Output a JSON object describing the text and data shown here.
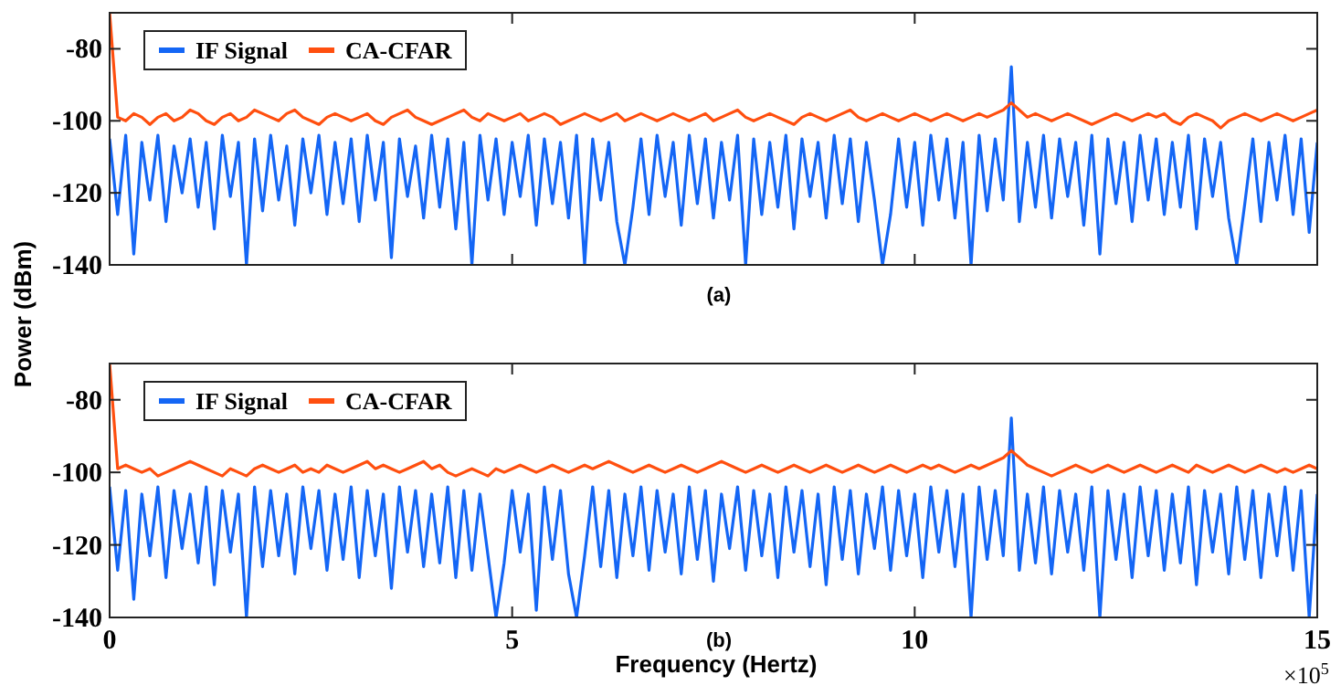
{
  "chart_data": [
    {
      "type": "line",
      "ylabel": "Power (dBm)",
      "annotations": [
        "(a)"
      ],
      "xlim": [
        0,
        15
      ],
      "xticks": [
        0,
        5,
        10,
        15
      ],
      "ylim": [
        -140,
        -70
      ],
      "yticks": [
        -80,
        -100,
        -120,
        -140
      ],
      "tick_labels": "y",
      "grid": false,
      "legend": "top left",
      "line_style": "solid",
      "marker": "none",
      "x": [
        0,
        0.1,
        0.2,
        0.3,
        0.4,
        0.5,
        0.6,
        0.7,
        0.8,
        0.9,
        1,
        1.1,
        1.2,
        1.3,
        1.4,
        1.5,
        1.6,
        1.7,
        1.8,
        1.9,
        2,
        2.1,
        2.2,
        2.3,
        2.4,
        2.5,
        2.6,
        2.7,
        2.8,
        2.9,
        3,
        3.1,
        3.2,
        3.3,
        3.4,
        3.5,
        3.6,
        3.7,
        3.8,
        3.9,
        4,
        4.1,
        4.2,
        4.3,
        4.4,
        4.5,
        4.6,
        4.7,
        4.8,
        4.9,
        5,
        5.1,
        5.2,
        5.3,
        5.4,
        5.5,
        5.6,
        5.7,
        5.8,
        5.9,
        6,
        6.1,
        6.2,
        6.3,
        6.4,
        6.5,
        6.6,
        6.7,
        6.8,
        6.9,
        7,
        7.1,
        7.2,
        7.3,
        7.4,
        7.5,
        7.6,
        7.7,
        7.8,
        7.9,
        8,
        8.1,
        8.2,
        8.3,
        8.4,
        8.5,
        8.6,
        8.7,
        8.8,
        8.9,
        9,
        9.1,
        9.2,
        9.3,
        9.4,
        9.5,
        9.6,
        9.7,
        9.8,
        9.9,
        10,
        10.1,
        10.2,
        10.3,
        10.4,
        10.5,
        10.6,
        10.7,
        10.8,
        10.9,
        11,
        11.1,
        11.2,
        11.3,
        11.4,
        11.5,
        11.6,
        11.7,
        11.8,
        11.9,
        12,
        12.1,
        12.2,
        12.3,
        12.4,
        12.5,
        12.6,
        12.7,
        12.8,
        12.9,
        13,
        13.1,
        13.2,
        13.3,
        13.4,
        13.5,
        13.6,
        13.7,
        13.8,
        13.9,
        14,
        14.1,
        14.2,
        14.3,
        14.4,
        14.5,
        14.6,
        14.7,
        14.8,
        14.9,
        15
      ],
      "series": [
        {
          "name": "IF Signal",
          "color": "#1466f5",
          "values": [
            -105,
            -126,
            -104,
            -137,
            -106,
            -122,
            -104,
            -128,
            -107,
            -120,
            -105,
            -124,
            -106,
            -130,
            -104,
            -121,
            -106,
            -140,
            -105,
            -125,
            -104,
            -122,
            -107,
            -129,
            -105,
            -120,
            -104,
            -126,
            -106,
            -123,
            -105,
            -128,
            -104,
            -122,
            -106,
            -138,
            -105,
            -121,
            -107,
            -127,
            -104,
            -124,
            -105,
            -130,
            -106,
            -140,
            -104,
            -122,
            -105,
            -126,
            -106,
            -121,
            -104,
            -129,
            -105,
            -123,
            -106,
            -127,
            -104,
            -140,
            -105,
            -122,
            -106,
            -128,
            -140,
            -124,
            -105,
            -126,
            -104,
            -121,
            -106,
            -129,
            -104,
            -123,
            -105,
            -127,
            -106,
            -122,
            -104,
            -140,
            -105,
            -126,
            -106,
            -124,
            -104,
            -130,
            -105,
            -121,
            -106,
            -127,
            -104,
            -123,
            -105,
            -128,
            -106,
            -122,
            -140,
            -126,
            -105,
            -124,
            -106,
            -129,
            -104,
            -122,
            -105,
            -127,
            -106,
            -140,
            -104,
            -125,
            -105,
            -122,
            -85,
            -128,
            -106,
            -124,
            -104,
            -127,
            -105,
            -121,
            -106,
            -129,
            -104,
            -137,
            -105,
            -123,
            -106,
            -128,
            -104,
            -122,
            -105,
            -126,
            -106,
            -124,
            -104,
            -130,
            -105,
            -121,
            -106,
            -127,
            -140,
            -123,
            -105,
            -128,
            -106,
            -122,
            -104,
            -126,
            -105,
            -131,
            -106
          ]
        },
        {
          "name": "CA-CFAR",
          "color": "#ff4f0f",
          "values": [
            -70,
            -99,
            -100,
            -98,
            -99,
            -101,
            -99,
            -98,
            -100,
            -99,
            -97,
            -98,
            -100,
            -101,
            -99,
            -98,
            -100,
            -99,
            -97,
            -98,
            -99,
            -100,
            -98,
            -97,
            -99,
            -100,
            -101,
            -99,
            -98,
            -99,
            -100,
            -99,
            -98,
            -100,
            -101,
            -99,
            -98,
            -97,
            -99,
            -100,
            -101,
            -100,
            -99,
            -98,
            -97,
            -99,
            -100,
            -98,
            -99,
            -100,
            -99,
            -98,
            -100,
            -99,
            -98,
            -99,
            -101,
            -100,
            -99,
            -98,
            -99,
            -100,
            -99,
            -98,
            -100,
            -99,
            -98,
            -99,
            -100,
            -99,
            -98,
            -99,
            -100,
            -99,
            -98,
            -100,
            -99,
            -98,
            -97,
            -99,
            -100,
            -99,
            -98,
            -99,
            -100,
            -101,
            -99,
            -98,
            -99,
            -100,
            -99,
            -98,
            -97,
            -99,
            -100,
            -99,
            -98,
            -99,
            -100,
            -99,
            -98,
            -99,
            -100,
            -99,
            -98,
            -99,
            -100,
            -99,
            -98,
            -99,
            -98,
            -97,
            -95,
            -97,
            -99,
            -98,
            -99,
            -100,
            -99,
            -98,
            -99,
            -100,
            -101,
            -100,
            -99,
            -98,
            -99,
            -100,
            -99,
            -98,
            -99,
            -98,
            -100,
            -101,
            -99,
            -98,
            -99,
            -100,
            -102,
            -100,
            -99,
            -98,
            -99,
            -100,
            -99,
            -98,
            -99,
            -100,
            -99,
            -98,
            -97
          ]
        }
      ]
    },
    {
      "type": "line",
      "xlabel": "Frequency (Hertz)",
      "annotations": [
        "(b)",
        "×10$^{5}$"
      ],
      "xlim": [
        0,
        15
      ],
      "xticks": [
        0,
        5,
        10,
        15
      ],
      "ylim": [
        -140,
        -70
      ],
      "yticks": [
        -80,
        -100,
        -120,
        -140
      ],
      "grid": false,
      "legend": "top left",
      "line_style": "solid",
      "marker": "none",
      "x": [
        0,
        0.1,
        0.2,
        0.3,
        0.4,
        0.5,
        0.6,
        0.7,
        0.8,
        0.9,
        1,
        1.1,
        1.2,
        1.3,
        1.4,
        1.5,
        1.6,
        1.7,
        1.8,
        1.9,
        2,
        2.1,
        2.2,
        2.3,
        2.4,
        2.5,
        2.6,
        2.7,
        2.8,
        2.9,
        3,
        3.1,
        3.2,
        3.3,
        3.4,
        3.5,
        3.6,
        3.7,
        3.8,
        3.9,
        4,
        4.1,
        4.2,
        4.3,
        4.4,
        4.5,
        4.6,
        4.7,
        4.8,
        4.9,
        5,
        5.1,
        5.2,
        5.3,
        5.4,
        5.5,
        5.6,
        5.7,
        5.8,
        5.9,
        6,
        6.1,
        6.2,
        6.3,
        6.4,
        6.5,
        6.6,
        6.7,
        6.8,
        6.9,
        7,
        7.1,
        7.2,
        7.3,
        7.4,
        7.5,
        7.6,
        7.7,
        7.8,
        7.9,
        8,
        8.1,
        8.2,
        8.3,
        8.4,
        8.5,
        8.6,
        8.7,
        8.8,
        8.9,
        9,
        9.1,
        9.2,
        9.3,
        9.4,
        9.5,
        9.6,
        9.7,
        9.8,
        9.9,
        10,
        10.1,
        10.2,
        10.3,
        10.4,
        10.5,
        10.6,
        10.7,
        10.8,
        10.9,
        11,
        11.1,
        11.2,
        11.3,
        11.4,
        11.5,
        11.6,
        11.7,
        11.8,
        11.9,
        12,
        12.1,
        12.2,
        12.3,
        12.4,
        12.5,
        12.6,
        12.7,
        12.8,
        12.9,
        13,
        13.1,
        13.2,
        13.3,
        13.4,
        13.5,
        13.6,
        13.7,
        13.8,
        13.9,
        14,
        14.1,
        14.2,
        14.3,
        14.4,
        14.5,
        14.6,
        14.7,
        14.8,
        14.9,
        15
      ],
      "series": [
        {
          "name": "IF Signal",
          "color": "#1466f5",
          "values": [
            -104,
            -127,
            -105,
            -135,
            -106,
            -123,
            -104,
            -129,
            -105,
            -121,
            -106,
            -125,
            -104,
            -131,
            -105,
            -122,
            -106,
            -140,
            -104,
            -126,
            -105,
            -123,
            -106,
            -128,
            -104,
            -121,
            -105,
            -127,
            -106,
            -124,
            -104,
            -129,
            -105,
            -123,
            -106,
            -132,
            -104,
            -122,
            -105,
            -126,
            -106,
            -125,
            -104,
            -129,
            -105,
            -127,
            -106,
            -123,
            -140,
            -125,
            -105,
            -122,
            -106,
            -138,
            -104,
            -124,
            -105,
            -128,
            -140,
            -123,
            -104,
            -126,
            -105,
            -129,
            -106,
            -123,
            -104,
            -127,
            -105,
            -122,
            -106,
            -128,
            -104,
            -124,
            -105,
            -130,
            -106,
            -121,
            -104,
            -127,
            -105,
            -123,
            -106,
            -129,
            -104,
            -122,
            -105,
            -126,
            -106,
            -131,
            -104,
            -124,
            -105,
            -128,
            -106,
            -121,
            -104,
            -127,
            -105,
            -123,
            -106,
            -129,
            -104,
            -122,
            -105,
            -126,
            -106,
            -140,
            -104,
            -124,
            -105,
            -123,
            -85,
            -127,
            -106,
            -125,
            -104,
            -128,
            -105,
            -122,
            -106,
            -127,
            -104,
            -140,
            -105,
            -124,
            -106,
            -129,
            -104,
            -123,
            -105,
            -127,
            -106,
            -125,
            -104,
            -131,
            -105,
            -122,
            -106,
            -128,
            -104,
            -124,
            -105,
            -129,
            -106,
            -123,
            -104,
            -127,
            -105,
            -140,
            -106
          ]
        },
        {
          "name": "CA-CFAR",
          "color": "#ff4f0f",
          "values": [
            -70,
            -99,
            -98,
            -99,
            -100,
            -99,
            -101,
            -100,
            -99,
            -98,
            -97,
            -98,
            -99,
            -100,
            -101,
            -99,
            -100,
            -101,
            -99,
            -98,
            -99,
            -100,
            -99,
            -98,
            -100,
            -99,
            -100,
            -98,
            -99,
            -100,
            -99,
            -98,
            -97,
            -99,
            -98,
            -99,
            -100,
            -99,
            -98,
            -97,
            -99,
            -98,
            -100,
            -101,
            -100,
            -99,
            -100,
            -101,
            -99,
            -100,
            -99,
            -98,
            -99,
            -100,
            -99,
            -98,
            -99,
            -100,
            -99,
            -98,
            -99,
            -98,
            -97,
            -98,
            -99,
            -100,
            -99,
            -98,
            -99,
            -100,
            -99,
            -98,
            -99,
            -100,
            -99,
            -98,
            -97,
            -98,
            -99,
            -100,
            -99,
            -98,
            -99,
            -100,
            -99,
            -98,
            -99,
            -100,
            -99,
            -98,
            -99,
            -100,
            -99,
            -98,
            -99,
            -100,
            -99,
            -98,
            -99,
            -100,
            -99,
            -98,
            -99,
            -98,
            -99,
            -100,
            -99,
            -98,
            -99,
            -98,
            -97,
            -96,
            -94,
            -96,
            -98,
            -99,
            -100,
            -101,
            -100,
            -99,
            -98,
            -99,
            -100,
            -99,
            -98,
            -99,
            -100,
            -99,
            -98,
            -99,
            -100,
            -99,
            -98,
            -99,
            -100,
            -98,
            -99,
            -100,
            -99,
            -98,
            -99,
            -100,
            -99,
            -98,
            -99,
            -100,
            -99,
            -100,
            -99,
            -98,
            -99
          ]
        }
      ]
    }
  ]
}
